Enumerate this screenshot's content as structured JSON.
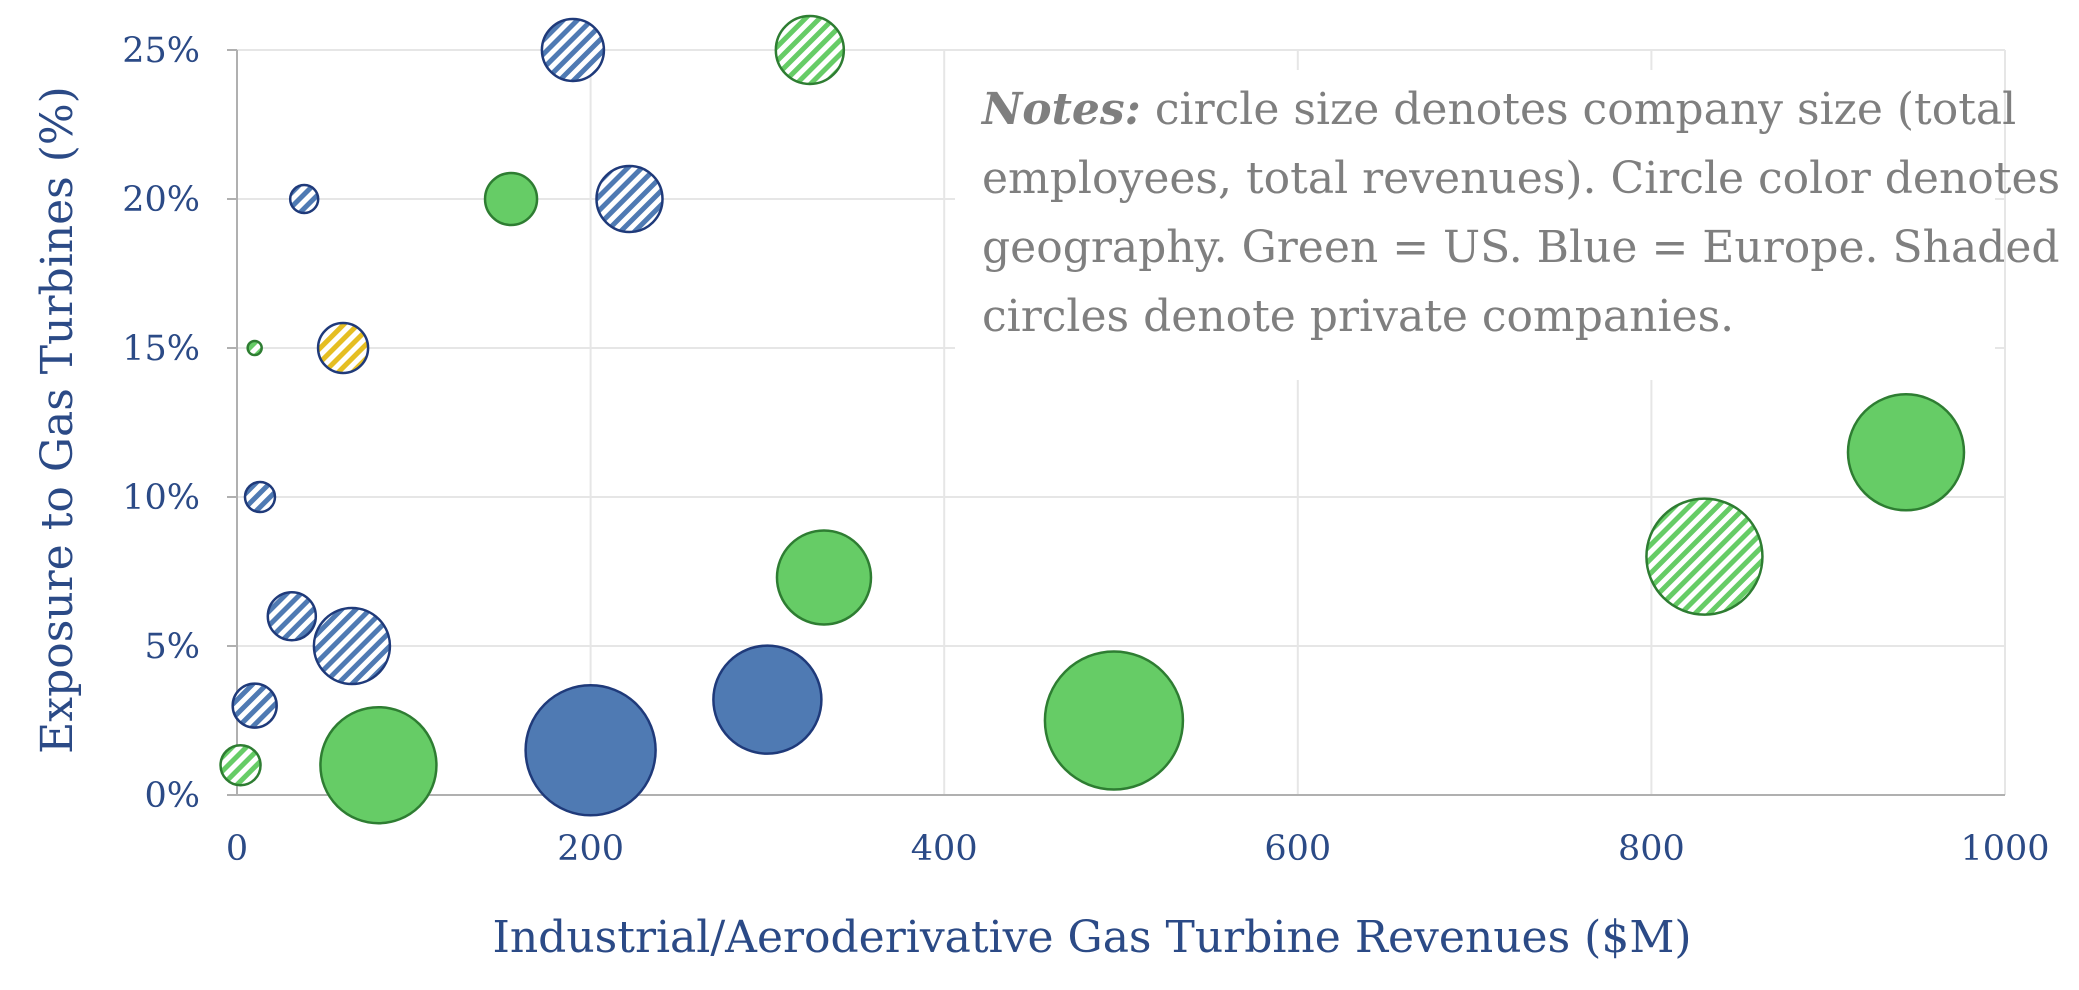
{
  "chart_data": {
    "type": "bubble",
    "xlabel": "Industrial/Aeroderivative Gas Turbine Revenues ($M)",
    "ylabel": "Exposure to Gas Turbines (%)",
    "xlim": [
      0,
      1000
    ],
    "ylim": [
      0,
      25
    ],
    "x_ticks": [
      0,
      200,
      400,
      600,
      800,
      1000
    ],
    "y_ticks": [
      0,
      5,
      10,
      15,
      20,
      25
    ],
    "y_tick_labels": [
      "0%",
      "5%",
      "10%",
      "15%",
      "20%",
      "25%"
    ],
    "grid": true,
    "colors": {
      "us": "#66cc66",
      "us_edge": "#2e7d32",
      "europe": "#4f7ab3",
      "europe_edge": "#1f3a7a",
      "other": "#e5be22",
      "other_edge": "#1f3a7a",
      "axis": "#b0b0b0",
      "grid": "#e6e6e6",
      "text": "#2b4a86"
    },
    "notes": {
      "lead": "Notes:",
      "lines": [
        " circle size denotes company size (total",
        "employees, total revenues). Circle color denotes",
        "geography. Green = US. Blue = Europe. Shaded",
        "circles denote private companies."
      ]
    },
    "points": [
      {
        "x": 190,
        "y": 25,
        "size": 31,
        "geo": "europe",
        "private": true
      },
      {
        "x": 324,
        "y": 25,
        "size": 34,
        "geo": "us",
        "private": true
      },
      {
        "x": 38,
        "y": 20,
        "size": 14,
        "geo": "europe",
        "private": true
      },
      {
        "x": 155,
        "y": 20,
        "size": 26,
        "geo": "us",
        "private": false
      },
      {
        "x": 222,
        "y": 20,
        "size": 33,
        "geo": "europe",
        "private": true
      },
      {
        "x": 10,
        "y": 15,
        "size": 7,
        "geo": "us",
        "private": true
      },
      {
        "x": 60,
        "y": 15,
        "size": 25,
        "geo": "other",
        "private": true
      },
      {
        "x": 13,
        "y": 10,
        "size": 15,
        "geo": "europe",
        "private": true
      },
      {
        "x": 31,
        "y": 6,
        "size": 24,
        "geo": "europe",
        "private": true
      },
      {
        "x": 65,
        "y": 5,
        "size": 38,
        "geo": "europe",
        "private": true
      },
      {
        "x": 10,
        "y": 3,
        "size": 22,
        "geo": "europe",
        "private": true
      },
      {
        "x": 2,
        "y": 1,
        "size": 20,
        "geo": "us",
        "private": true
      },
      {
        "x": 80,
        "y": 1,
        "size": 58,
        "geo": "us",
        "private": false
      },
      {
        "x": 200,
        "y": 1.5,
        "size": 65,
        "geo": "europe",
        "private": false
      },
      {
        "x": 300,
        "y": 3.2,
        "size": 54,
        "geo": "europe",
        "private": false
      },
      {
        "x": 332,
        "y": 7.3,
        "size": 47,
        "geo": "us",
        "private": false
      },
      {
        "x": 496,
        "y": 2.5,
        "size": 69,
        "geo": "us",
        "private": false
      },
      {
        "x": 830,
        "y": 8,
        "size": 58,
        "geo": "us",
        "private": true
      },
      {
        "x": 944,
        "y": 11.5,
        "size": 58,
        "geo": "us",
        "private": false
      }
    ]
  }
}
